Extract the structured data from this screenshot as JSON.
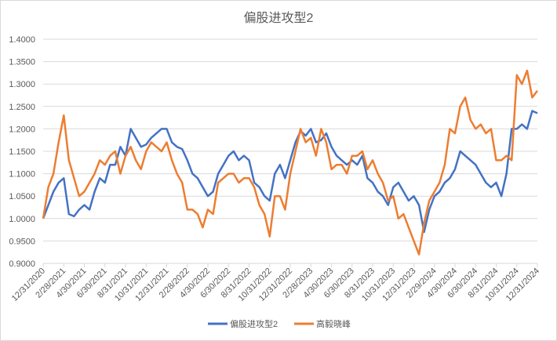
{
  "chart_data": {
    "type": "line",
    "title": "偏股进攻型2",
    "xlabel": "",
    "ylabel": "",
    "ylim": [
      0.9,
      1.4
    ],
    "yticks": [
      "0.9000",
      "0.9500",
      "1.0000",
      "1.0500",
      "1.1000",
      "1.1500",
      "1.2000",
      "1.2500",
      "1.3000",
      "1.3500",
      "1.4000"
    ],
    "x_tick_labels": [
      "12/31/2020",
      "2/28/2021",
      "4/30/2021",
      "6/30/2021",
      "8/31/2021",
      "10/31/2021",
      "12/31/2021",
      "2/28/2022",
      "4/30/2022",
      "6/30/2022",
      "8/31/2022",
      "10/31/2022",
      "12/31/2022",
      "2/28/2023",
      "4/30/2023",
      "6/30/2023",
      "8/31/2023",
      "10/31/2023",
      "12/31/2023",
      "2/29/2024",
      "4/30/2024",
      "6/30/2024",
      "8/31/2024",
      "10/31/2024",
      "12/31/2024"
    ],
    "grid": true,
    "legend": "bottom",
    "series": [
      {
        "name": "偏股进攻型2",
        "color": "#4472C4",
        "values": [
          1.0,
          1.03,
          1.06,
          1.08,
          1.09,
          1.01,
          1.005,
          1.02,
          1.03,
          1.02,
          1.06,
          1.09,
          1.08,
          1.12,
          1.12,
          1.16,
          1.14,
          1.2,
          1.18,
          1.16,
          1.165,
          1.18,
          1.19,
          1.2,
          1.2,
          1.17,
          1.16,
          1.155,
          1.13,
          1.1,
          1.09,
          1.07,
          1.05,
          1.06,
          1.1,
          1.12,
          1.14,
          1.15,
          1.13,
          1.14,
          1.13,
          1.08,
          1.07,
          1.05,
          1.04,
          1.1,
          1.12,
          1.09,
          1.13,
          1.17,
          1.195,
          1.185,
          1.2,
          1.17,
          1.175,
          1.19,
          1.16,
          1.14,
          1.13,
          1.12,
          1.13,
          1.12,
          1.14,
          1.09,
          1.08,
          1.06,
          1.05,
          1.03,
          1.07,
          1.08,
          1.06,
          1.04,
          1.05,
          1.03,
          0.97,
          1.02,
          1.05,
          1.06,
          1.08,
          1.09,
          1.11,
          1.15,
          1.14,
          1.13,
          1.12,
          1.1,
          1.08,
          1.07,
          1.08,
          1.05,
          1.1,
          1.2,
          1.2,
          1.21,
          1.2,
          1.24,
          1.235
        ]
      },
      {
        "name": "高毅晓峰",
        "color": "#ED7D31",
        "values": [
          1.0,
          1.07,
          1.1,
          1.17,
          1.23,
          1.13,
          1.09,
          1.05,
          1.06,
          1.08,
          1.1,
          1.13,
          1.12,
          1.14,
          1.15,
          1.1,
          1.14,
          1.16,
          1.13,
          1.11,
          1.15,
          1.17,
          1.16,
          1.15,
          1.17,
          1.13,
          1.1,
          1.08,
          1.02,
          1.02,
          1.01,
          0.98,
          1.02,
          1.01,
          1.08,
          1.09,
          1.1,
          1.1,
          1.08,
          1.09,
          1.09,
          1.07,
          1.03,
          1.01,
          0.96,
          1.05,
          1.05,
          1.02,
          1.1,
          1.15,
          1.2,
          1.17,
          1.18,
          1.14,
          1.2,
          1.17,
          1.11,
          1.12,
          1.12,
          1.1,
          1.14,
          1.14,
          1.15,
          1.11,
          1.13,
          1.1,
          1.08,
          1.04,
          1.05,
          1.0,
          1.01,
          0.98,
          0.95,
          0.92,
          0.99,
          1.04,
          1.06,
          1.08,
          1.12,
          1.2,
          1.19,
          1.25,
          1.27,
          1.22,
          1.2,
          1.21,
          1.19,
          1.2,
          1.13,
          1.13,
          1.14,
          1.13,
          1.32,
          1.3,
          1.33,
          1.27,
          1.285
        ]
      }
    ]
  }
}
